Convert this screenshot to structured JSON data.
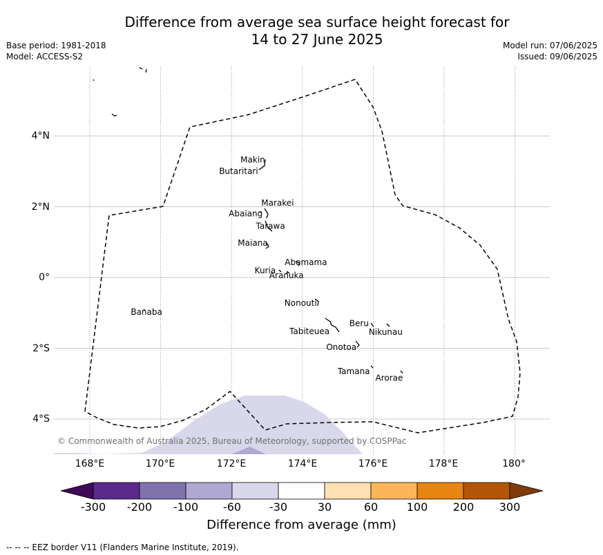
{
  "title_line1": "Difference from average sea surface height forecast for",
  "title_line2": "14 to 27 June 2025",
  "meta_left": [
    "Base period: 1981-2018",
    "Model: ACCESS-S2"
  ],
  "meta_right": [
    "Model run: 07/06/2025",
    "Issued: 09/06/2025"
  ],
  "map": {
    "lon_range": [
      167,
      181
    ],
    "lat_range": [
      -5,
      6
    ],
    "lat_ticks": [
      "4°N",
      "2°N",
      "0°",
      "2°S",
      "4°S"
    ],
    "lon_ticks": [
      "168°E",
      "170°E",
      "172°E",
      "174°E",
      "176°E",
      "178°E",
      "180°"
    ],
    "copyright": "© Commonwealth of Australia 2025, Bureau of Meteorology, supported by COSPPac",
    "islands": [
      {
        "name": "Makin",
        "lon": 172.6,
        "lat": 3.25
      },
      {
        "name": "Butaritari",
        "lon": 172.2,
        "lat": 2.93
      },
      {
        "name": "Marakei",
        "lon": 173.3,
        "lat": 2.03
      },
      {
        "name": "Abaiang",
        "lon": 172.4,
        "lat": 1.73
      },
      {
        "name": "Tarawa",
        "lon": 173.1,
        "lat": 1.38
      },
      {
        "name": "Maiana",
        "lon": 172.6,
        "lat": 0.9
      },
      {
        "name": "Abemama",
        "lon": 174.1,
        "lat": 0.35
      },
      {
        "name": "Kuria",
        "lon": 172.95,
        "lat": 0.12
      },
      {
        "name": "Aranuka",
        "lon": 173.55,
        "lat": -0.02
      },
      {
        "name": "Nonouti",
        "lon": 173.95,
        "lat": -0.8
      },
      {
        "name": "Banaba",
        "lon": 169.6,
        "lat": -1.05
      },
      {
        "name": "Beru",
        "lon": 175.6,
        "lat": -1.38
      },
      {
        "name": "Tabiteuea",
        "lon": 174.2,
        "lat": -1.6
      },
      {
        "name": "Nikunau",
        "lon": 176.35,
        "lat": -1.62
      },
      {
        "name": "Onotoa",
        "lon": 175.1,
        "lat": -2.05
      },
      {
        "name": "Tamana",
        "lon": 175.45,
        "lat": -2.73
      },
      {
        "name": "Arorae",
        "lon": 176.45,
        "lat": -2.92
      }
    ]
  },
  "colorbar": {
    "title": "Difference from average (mm)",
    "labels": [
      "-300",
      "-200",
      "-100",
      "-60",
      "-30",
      "30",
      "60",
      "100",
      "200",
      "300"
    ],
    "colors": [
      "#3f0a58",
      "#5a2a8c",
      "#8072ad",
      "#aea8d2",
      "#d8d8ea",
      "#ffffff",
      "#ffe0b2",
      "#fdb55c",
      "#e6850f",
      "#b35508",
      "#7f3b08"
    ]
  },
  "footer": "--  --  -- EEZ border V11 (Flanders Marine Institute, 2019)."
}
